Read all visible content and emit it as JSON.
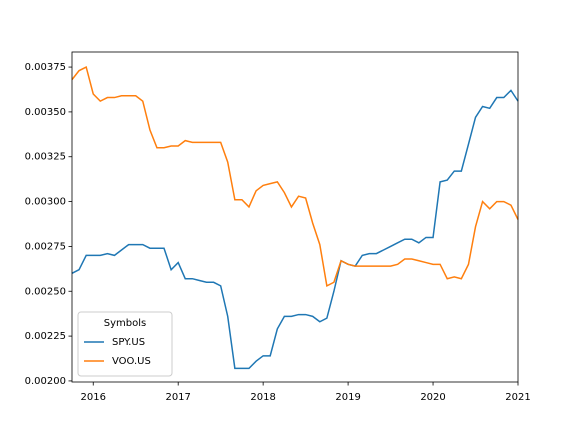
{
  "chart_data": {
    "type": "line",
    "x": [
      2015.75,
      2015.833,
      2015.917,
      2016,
      2016.083,
      2016.167,
      2016.25,
      2016.333,
      2016.417,
      2016.5,
      2016.583,
      2016.667,
      2016.75,
      2016.833,
      2016.917,
      2017,
      2017.083,
      2017.167,
      2017.25,
      2017.333,
      2017.417,
      2017.5,
      2017.583,
      2017.667,
      2017.75,
      2017.833,
      2017.917,
      2018,
      2018.083,
      2018.167,
      2018.25,
      2018.333,
      2018.417,
      2018.5,
      2018.583,
      2018.667,
      2018.75,
      2018.833,
      2018.917,
      2019,
      2019.083,
      2019.167,
      2019.25,
      2019.333,
      2019.417,
      2019.5,
      2019.583,
      2019.667,
      2019.75,
      2019.833,
      2019.917,
      2020,
      2020.083,
      2020.167,
      2020.25,
      2020.333,
      2020.417,
      2020.5,
      2020.583,
      2020.667,
      2020.75,
      2020.833,
      2020.917,
      2021
    ],
    "series": [
      {
        "name": "SPY.US",
        "color": "#1f77b4",
        "values": [
          0.0026,
          0.00262,
          0.0027,
          0.0027,
          0.0027,
          0.00271,
          0.0027,
          0.00273,
          0.00276,
          0.00276,
          0.00276,
          0.00274,
          0.00274,
          0.00274,
          0.00262,
          0.00266,
          0.00257,
          0.00257,
          0.00256,
          0.00255,
          0.00255,
          0.00253,
          0.00236,
          0.00207,
          0.00207,
          0.00207,
          0.00211,
          0.00214,
          0.00214,
          0.00229,
          0.00236,
          0.00236,
          0.00237,
          0.00237,
          0.00236,
          0.00233,
          0.00235,
          0.0025,
          0.00267,
          0.00265,
          0.00264,
          0.0027,
          0.00271,
          0.00271,
          0.00273,
          0.00275,
          0.00277,
          0.00279,
          0.00279,
          0.00277,
          0.0028,
          0.0028,
          0.00311,
          0.00312,
          0.00317,
          0.00317,
          0.00332,
          0.00347,
          0.00353,
          0.00352,
          0.00358,
          0.00358,
          0.00362,
          0.00356
        ]
      },
      {
        "name": "VOO.US",
        "color": "#ff7f0e",
        "values": [
          0.00368,
          0.00373,
          0.00375,
          0.0036,
          0.00356,
          0.00358,
          0.00358,
          0.00359,
          0.00359,
          0.00359,
          0.00356,
          0.0034,
          0.0033,
          0.0033,
          0.00331,
          0.00331,
          0.00334,
          0.00333,
          0.00333,
          0.00333,
          0.00333,
          0.00333,
          0.00322,
          0.00301,
          0.00301,
          0.00297,
          0.00306,
          0.00309,
          0.0031,
          0.00311,
          0.00305,
          0.00297,
          0.00303,
          0.00302,
          0.00288,
          0.00276,
          0.00253,
          0.00255,
          0.00267,
          0.00265,
          0.00264,
          0.00264,
          0.00264,
          0.00264,
          0.00264,
          0.00264,
          0.00265,
          0.00268,
          0.00268,
          0.00267,
          0.00266,
          0.00265,
          0.00265,
          0.00257,
          0.00258,
          0.00257,
          0.00265,
          0.00286,
          0.003,
          0.00296,
          0.003,
          0.003,
          0.00298,
          0.0029
        ]
      }
    ],
    "xlim": [
      2015.75,
      2021
    ],
    "xticks": [
      2016,
      2017,
      2018,
      2019,
      2020,
      2021
    ],
    "ylim": [
      0.001994,
      0.003834
    ],
    "yticks": [
      {
        "value": 0.002,
        "label": "0.00200"
      },
      {
        "value": 0.00225,
        "label": "0.00225"
      },
      {
        "value": 0.0025,
        "label": "0.00250"
      },
      {
        "value": 0.00275,
        "label": "0.00275"
      },
      {
        "value": 0.003,
        "label": "0.00300"
      },
      {
        "value": 0.00325,
        "label": "0.00325"
      },
      {
        "value": 0.0035,
        "label": "0.00350"
      },
      {
        "value": 0.00375,
        "label": "0.00375"
      }
    ],
    "legend_title": "Symbols",
    "legend_loc": "lower left",
    "grid": false
  }
}
